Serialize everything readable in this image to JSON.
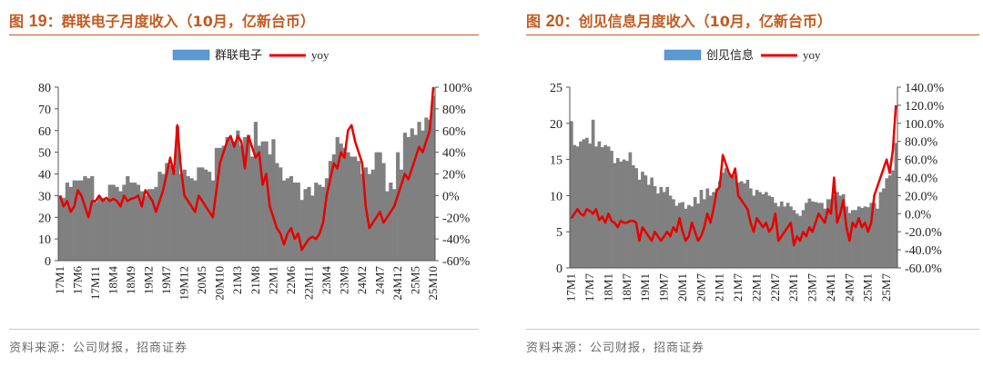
{
  "figures": [
    {
      "title_prefix": "图",
      "title_num": "19",
      "title_text": "：群联电子月度收入（10月，亿新台币）",
      "source": "资料来源：公司财报，招商证券"
    },
    {
      "title_prefix": "图",
      "title_num": "20",
      "title_text": "：创见信息月度收入（10月，亿新台币）",
      "source": "资料来源：公司财报，招商证券"
    }
  ],
  "colors": {
    "title": "#c45a1e",
    "bar": "#808080",
    "line": "#e60000",
    "legend_bar": "#5b9bd5"
  },
  "chart_data": [
    {
      "type": "bar",
      "legend_position": "top",
      "x": [
        "17M1",
        "17M2",
        "17M3",
        "17M4",
        "17M5",
        "17M6",
        "17M7",
        "17M8",
        "17M9",
        "17M10",
        "17M11",
        "17M12",
        "18M1",
        "18M2",
        "18M3",
        "18M4",
        "18M5",
        "18M6",
        "18M7",
        "18M8",
        "18M9",
        "18M10",
        "18M11",
        "18M12",
        "19M1",
        "19M2",
        "19M3",
        "19M4",
        "19M5",
        "19M6",
        "19M7",
        "19M8",
        "19M9",
        "19M10",
        "19M11",
        "19M12",
        "20M1",
        "20M2",
        "20M3",
        "20M4",
        "20M5",
        "20M6",
        "20M7",
        "20M8",
        "20M9",
        "20M10",
        "20M11",
        "20M12",
        "21M1",
        "21M2",
        "21M3",
        "21M4",
        "21M5",
        "21M6",
        "21M7",
        "21M8",
        "21M9",
        "21M10",
        "21M11",
        "21M12",
        "22M1",
        "22M2",
        "22M3",
        "22M4",
        "22M5",
        "22M6",
        "22M7",
        "22M8",
        "22M9",
        "22M10",
        "22M11",
        "22M12",
        "23M1",
        "23M2",
        "23M3",
        "23M4",
        "23M5",
        "23M6",
        "23M7",
        "23M8",
        "23M9",
        "23M10",
        "23M11",
        "23M12",
        "24M1",
        "24M2",
        "24M3",
        "24M4",
        "24M5",
        "24M6",
        "24M7",
        "24M8",
        "24M9",
        "24M10",
        "24M11",
        "24M12",
        "25M1",
        "25M2",
        "25M3",
        "25M4",
        "25M5",
        "25M6",
        "25M7",
        "25M8",
        "25M9",
        "25M10"
      ],
      "x_tick_labels": [
        "17M1",
        "17M6",
        "17M11",
        "18M4",
        "18M9",
        "19M2",
        "19M7",
        "19M12",
        "20M5",
        "20M10",
        "21M3",
        "21M8",
        "22M1",
        "22M6",
        "22M11",
        "23M4",
        "23M9",
        "24M2",
        "24M7",
        "24M12",
        "25M5",
        "25M10"
      ],
      "series": [
        {
          "name": "群联电子",
          "type": "bar",
          "axis": "left",
          "values": [
            30,
            29,
            36,
            34,
            37,
            37,
            37,
            39,
            38,
            39,
            27,
            30,
            29,
            28,
            35,
            35,
            34,
            32,
            35,
            39,
            36,
            36,
            35,
            32,
            30,
            33,
            33,
            34,
            41,
            40,
            45,
            44,
            42,
            62,
            40,
            42,
            39,
            38,
            37,
            43,
            43,
            42,
            41,
            37,
            52,
            52,
            53,
            57,
            56,
            55,
            60,
            53,
            57,
            58,
            48,
            64,
            53,
            55,
            55,
            49,
            56,
            45,
            43,
            37,
            38,
            39,
            36,
            36,
            28,
            33,
            34,
            30,
            36,
            35,
            34,
            38,
            46,
            49,
            57,
            54,
            52,
            50,
            48,
            48,
            46,
            40,
            43,
            40,
            42,
            50,
            50,
            45,
            32,
            36,
            33,
            50,
            42,
            59,
            57,
            61,
            58,
            64,
            60,
            66,
            65,
            76
          ]
        },
        {
          "name": "yoy",
          "type": "line",
          "axis": "right",
          "values": [
            0,
            -10,
            -5,
            -15,
            -10,
            5,
            0,
            -10,
            -20,
            -5,
            -5,
            0,
            -5,
            -2,
            -5,
            -3,
            -5,
            -10,
            0,
            -5,
            -3,
            -2,
            0,
            -10,
            5,
            0,
            -5,
            -15,
            -5,
            5,
            20,
            35,
            20,
            65,
            25,
            0,
            -5,
            -10,
            -15,
            0,
            -5,
            -10,
            -15,
            -20,
            5,
            30,
            40,
            50,
            55,
            45,
            55,
            50,
            25,
            55,
            45,
            35,
            40,
            10,
            20,
            -10,
            -20,
            -30,
            -35,
            -45,
            -35,
            -30,
            -40,
            -35,
            -50,
            -45,
            -40,
            -38,
            -40,
            -35,
            -25,
            0,
            15,
            30,
            25,
            40,
            35,
            60,
            65,
            50,
            40,
            30,
            -10,
            -30,
            -25,
            -20,
            -15,
            -25,
            -20,
            -15,
            -10,
            0,
            10,
            20,
            15,
            25,
            35,
            45,
            40,
            50,
            60,
            100
          ]
        }
      ],
      "y_left": {
        "min": 0,
        "max": 80,
        "ticks": [
          "0",
          "10",
          "20",
          "30",
          "40",
          "50",
          "60",
          "70",
          "80"
        ]
      },
      "y_right": {
        "min": -60,
        "max": 100,
        "ticks": [
          "-60%",
          "-40%",
          "-20%",
          "0%",
          "20%",
          "40%",
          "60%",
          "80%",
          "100%"
        ]
      }
    },
    {
      "type": "bar",
      "legend_position": "top",
      "x": [
        "17M1",
        "17M2",
        "17M3",
        "17M4",
        "17M5",
        "17M6",
        "17M7",
        "17M8",
        "17M9",
        "17M10",
        "17M11",
        "17M12",
        "18M1",
        "18M2",
        "18M3",
        "18M4",
        "18M5",
        "18M6",
        "18M7",
        "18M8",
        "18M9",
        "18M10",
        "18M11",
        "18M12",
        "19M1",
        "19M2",
        "19M3",
        "19M4",
        "19M5",
        "19M6",
        "19M7",
        "19M8",
        "19M9",
        "19M10",
        "19M11",
        "19M12",
        "20M1",
        "20M2",
        "20M3",
        "20M4",
        "20M5",
        "20M6",
        "20M7",
        "20M8",
        "20M9",
        "20M10",
        "20M11",
        "20M12",
        "21M1",
        "21M2",
        "21M3",
        "21M4",
        "21M5",
        "21M6",
        "21M7",
        "21M8",
        "21M9",
        "21M10",
        "21M11",
        "21M12",
        "22M1",
        "22M2",
        "22M3",
        "22M4",
        "22M5",
        "22M6",
        "22M7",
        "22M8",
        "22M9",
        "22M10",
        "22M11",
        "22M12",
        "23M1",
        "23M2",
        "23M3",
        "23M4",
        "23M5",
        "23M6",
        "23M7",
        "23M8",
        "23M9",
        "23M10",
        "23M11",
        "23M12",
        "24M1",
        "24M2",
        "24M3",
        "24M4",
        "24M5",
        "24M6",
        "24M7",
        "24M8",
        "24M9",
        "24M10",
        "24M11",
        "24M12",
        "25M1",
        "25M2",
        "25M3",
        "25M4",
        "25M5",
        "25M6",
        "25M7",
        "25M8",
        "25M9",
        "25M10"
      ],
      "x_tick_labels": [
        "17M1",
        "17M7",
        "18M1",
        "18M7",
        "19M1",
        "19M7",
        "20M1",
        "20M7",
        "21M1",
        "21M7",
        "22M1",
        "22M7",
        "23M1",
        "23M7",
        "24M1",
        "24M7",
        "25M1",
        "25M7"
      ],
      "series": [
        {
          "name": "创见信息",
          "type": "bar",
          "axis": "left",
          "values": [
            20.3,
            17,
            16.8,
            17.5,
            17.8,
            18,
            17.2,
            20.5,
            16.8,
            17.5,
            16.7,
            17,
            16.8,
            16.2,
            14.5,
            15.2,
            14.7,
            15,
            14.8,
            16,
            14.2,
            13.8,
            12.2,
            13.3,
            12.8,
            11.5,
            12.5,
            11.3,
            10.3,
            11.2,
            10.5,
            11.2,
            10,
            9.5,
            8.6,
            9,
            9.1,
            8.2,
            8.7,
            8.5,
            9.8,
            8.9,
            10.8,
            9.5,
            11,
            10,
            10.5,
            11,
            12,
            13.2,
            13.8,
            13,
            12.5,
            12.8,
            11.8,
            12,
            11.7,
            12.2,
            11,
            10,
            10.8,
            10.5,
            10.2,
            10.5,
            10,
            9.8,
            9,
            8.5,
            9.2,
            8.5,
            9,
            8.5,
            8,
            7.5,
            7.2,
            8,
            9,
            9.6,
            9.2,
            9.1,
            9,
            9,
            8.2,
            9.5,
            9.5,
            10,
            10.5,
            10,
            10.2,
            8.5,
            7.6,
            8,
            8,
            8.5,
            8.3,
            8.5,
            8.4,
            9,
            9,
            8.2,
            10.5,
            11,
            12.4,
            12.8,
            13.5,
            17.3
          ]
        },
        {
          "name": "yoy",
          "type": "line",
          "axis": "right",
          "values": [
            -5,
            0,
            5,
            0,
            -2,
            5,
            3,
            0,
            5,
            -7,
            -3,
            -10,
            0,
            -8,
            -10,
            -15,
            -8,
            -10,
            -10,
            -8,
            -8,
            -10,
            -30,
            -15,
            -20,
            -25,
            -30,
            -20,
            -25,
            -30,
            -25,
            -20,
            -25,
            -15,
            -20,
            -5,
            -20,
            -30,
            -25,
            -10,
            -20,
            -30,
            -25,
            -15,
            0,
            -10,
            5,
            25,
            30,
            65,
            55,
            45,
            40,
            50,
            20,
            15,
            10,
            5,
            -10,
            -20,
            -5,
            -10,
            -15,
            -10,
            -20,
            -15,
            0,
            -30,
            -25,
            -20,
            -15,
            -10,
            -35,
            -25,
            -30,
            -20,
            -25,
            -15,
            -20,
            -10,
            0,
            -5,
            -10,
            5,
            0,
            40,
            -10,
            0,
            15,
            -15,
            -30,
            -10,
            -15,
            -5,
            -15,
            -10,
            -20,
            -10,
            20,
            30,
            40,
            50,
            60,
            45,
            70,
            120
          ]
        }
      ],
      "y_left": {
        "min": 0,
        "max": 25,
        "ticks": [
          "0",
          "5",
          "10",
          "15",
          "20",
          "25"
        ]
      },
      "y_right": {
        "min": -60,
        "max": 140,
        "ticks": [
          "-60.0%",
          "-40.0%",
          "-20.0%",
          "0.0%",
          "20.0%",
          "40.0%",
          "60.0%",
          "80.0%",
          "100.0%",
          "120.0%",
          "140.0%"
        ]
      }
    }
  ]
}
